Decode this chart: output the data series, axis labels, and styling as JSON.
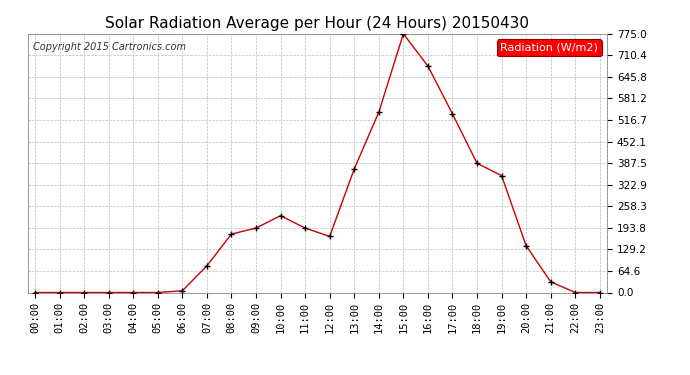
{
  "title": "Solar Radiation Average per Hour (24 Hours) 20150430",
  "copyright": "Copyright 2015 Cartronics.com",
  "legend_label": "Radiation (W/m2)",
  "hours": [
    "00:00",
    "01:00",
    "02:00",
    "03:00",
    "04:00",
    "05:00",
    "06:00",
    "07:00",
    "08:00",
    "09:00",
    "10:00",
    "11:00",
    "12:00",
    "13:00",
    "14:00",
    "15:00",
    "16:00",
    "17:00",
    "18:00",
    "19:00",
    "20:00",
    "21:00",
    "22:00",
    "23:00"
  ],
  "values": [
    0.0,
    0.0,
    0.0,
    0.0,
    0.0,
    0.0,
    5.0,
    80.0,
    175.0,
    193.0,
    230.0,
    193.0,
    168.0,
    370.0,
    540.0,
    775.0,
    678.0,
    535.0,
    387.0,
    350.0,
    140.0,
    32.0,
    0.0,
    0.0
  ],
  "line_color": "#cc0000",
  "marker_color": "#000000",
  "bg_color": "#ffffff",
  "grid_color": "#bbbbbb",
  "ylim": [
    0.0,
    775.0
  ],
  "yticks": [
    0.0,
    64.6,
    129.2,
    193.8,
    258.3,
    322.9,
    387.5,
    452.1,
    516.7,
    581.2,
    645.8,
    710.4,
    775.0
  ],
  "title_fontsize": 11,
  "copyright_fontsize": 7,
  "legend_fontsize": 8,
  "tick_fontsize": 7.5
}
